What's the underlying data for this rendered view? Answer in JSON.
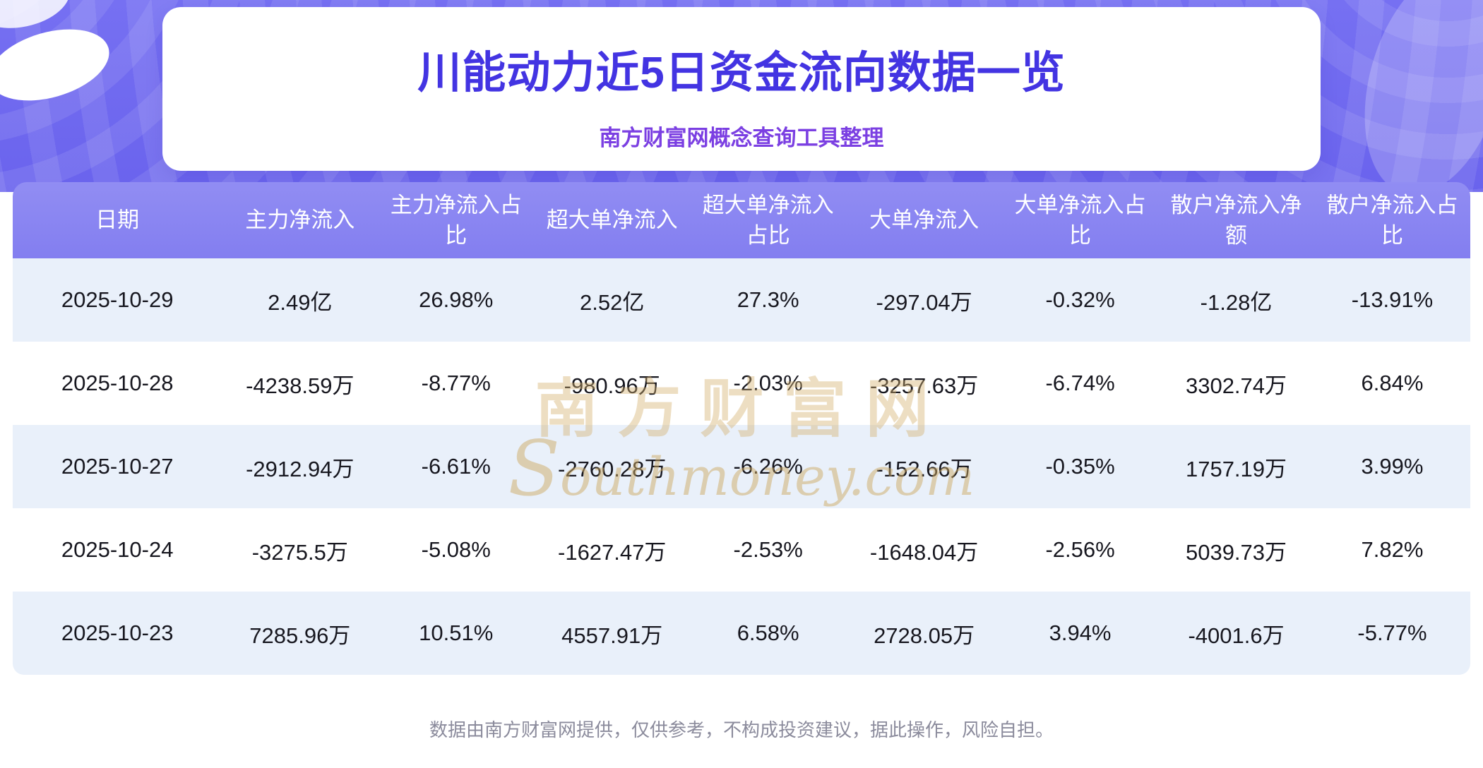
{
  "chart_data": {
    "type": "table",
    "title": "川能动力近5日资金流向数据一览",
    "subtitle": "南方财富网概念查询工具整理",
    "columns": [
      "日期",
      "主力净流入",
      "主力净流入占比",
      "超大单净流入",
      "超大单净流入占比",
      "大单净流入",
      "大单净流入占比",
      "散户净流入净额",
      "散户净流入占比"
    ],
    "rows": [
      [
        "2025-10-29",
        "2.49亿",
        "26.98%",
        "2.52亿",
        "27.3%",
        "-297.04万",
        "-0.32%",
        "-1.28亿",
        "-13.91%"
      ],
      [
        "2025-10-28",
        "-4238.59万",
        "-8.77%",
        "-980.96万",
        "-2.03%",
        "-3257.63万",
        "-6.74%",
        "3302.74万",
        "6.84%"
      ],
      [
        "2025-10-27",
        "-2912.94万",
        "-6.61%",
        "-2760.28万",
        "-6.26%",
        "-152.66万",
        "-0.35%",
        "1757.19万",
        "3.99%"
      ],
      [
        "2025-10-24",
        "-3275.5万",
        "-5.08%",
        "-1627.47万",
        "-2.53%",
        "-1648.04万",
        "-2.56%",
        "5039.73万",
        "7.82%"
      ],
      [
        "2025-10-23",
        "7285.96万",
        "10.51%",
        "4557.91万",
        "6.58%",
        "2728.05万",
        "3.94%",
        "-4001.6万",
        "-5.77%"
      ]
    ]
  },
  "watermark": {
    "cn": "南方财富网",
    "en": "Southmoney.com"
  },
  "footer": {
    "disclaimer": "数据由南方财富网提供，仅供参考，不构成投资建议，据此操作，风险自担。"
  },
  "colors": {
    "banner_purple": "#6a63ed",
    "title_blue": "#4334e2",
    "subtitle_purple": "#7b3fe2",
    "table_header": "#8a86f1",
    "row_alt_blue": "#e9f0fa",
    "watermark_gold": "#d5b16e",
    "footer_gray": "#8b8b9c"
  }
}
